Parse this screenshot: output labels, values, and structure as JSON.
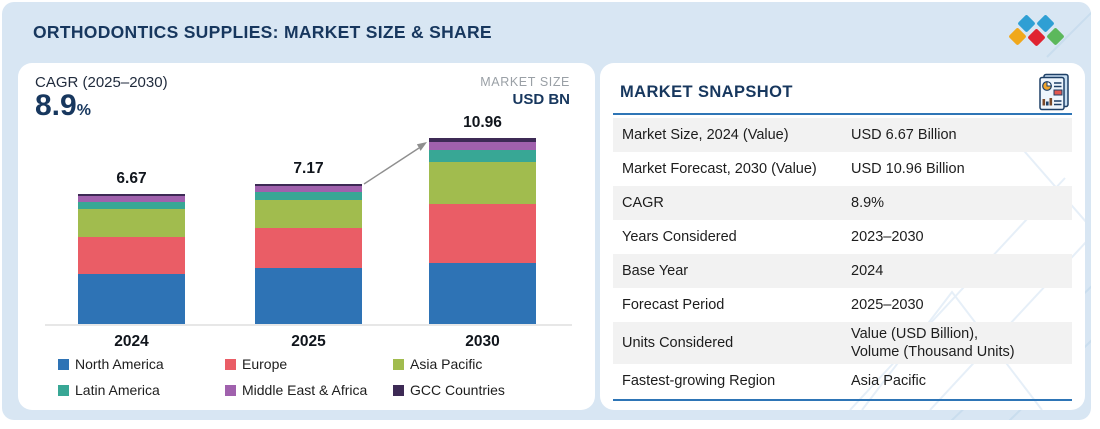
{
  "header": {
    "title": "ORTHODONTICS SUPPLIES: MARKET SIZE & SHARE"
  },
  "logo": {
    "diamond_colors": [
      "#2f9fd4",
      "#2f9fd4",
      "#f0a81c",
      "#e02330",
      "#5cb85c"
    ]
  },
  "chart_data": {
    "type": "bar",
    "stacked": true,
    "cagr": {
      "label": "CAGR (2025–2030)",
      "value": "8.9",
      "unit": "%"
    },
    "market_size_note": {
      "line1": "MARKET SIZE",
      "line2": "USD BN"
    },
    "categories": [
      "2024",
      "2025",
      "2030"
    ],
    "totals": [
      6.67,
      7.17,
      10.96
    ],
    "total_labels": [
      "6.67",
      "7.17",
      "10.96"
    ],
    "series": [
      {
        "name": "North America",
        "color": "#2e73b5",
        "values": [
          2.57,
          2.87,
          3.6
        ]
      },
      {
        "name": "Europe",
        "color": "#ea5d66",
        "values": [
          1.9,
          2.05,
          3.48
        ]
      },
      {
        "name": "Asia Pacific",
        "color": "#a1bc4e",
        "values": [
          1.44,
          1.43,
          2.48
        ]
      },
      {
        "name": "Latin America",
        "color": "#38a795",
        "values": [
          0.33,
          0.41,
          0.71
        ]
      },
      {
        "name": "Middle East & Africa",
        "color": "#a061ad",
        "values": [
          0.33,
          0.31,
          0.47
        ]
      },
      {
        "name": "GCC Countries",
        "color": "#3d2a55",
        "values": [
          0.1,
          0.1,
          0.22
        ]
      }
    ],
    "legend_position": "bottom",
    "grid": false,
    "growth_arrow": {
      "from": "2025",
      "to": "2030"
    }
  },
  "snapshot": {
    "heading": "MARKET SNAPSHOT",
    "rows": [
      {
        "label": "Market Size, 2024 (Value)",
        "value": "USD 6.67 Billion"
      },
      {
        "label": "Market Forecast, 2030 (Value)",
        "value": "USD 10.96 Billion"
      },
      {
        "label": "CAGR",
        "value": "8.9%"
      },
      {
        "label": "Years Considered",
        "value": "2023–2030"
      },
      {
        "label": "Base Year",
        "value": "2024"
      },
      {
        "label": "Forecast Period",
        "value": "2025–2030"
      },
      {
        "label": "Units Considered",
        "value": "Value (USD Billion),\nVolume (Thousand Units)"
      },
      {
        "label": "Fastest-growing Region",
        "value": "Asia Pacific"
      }
    ]
  },
  "colors": {
    "background": "#d8e6f3",
    "navy": "#17375e",
    "rule_blue": "#2e75b6",
    "row_shade": "#f2f2f2",
    "muted_gray": "#9aa0a6",
    "axis_gray": "#e7e7e7",
    "arrow_gray": "#8f8f8f",
    "text_dark": "#1d1d1d"
  }
}
